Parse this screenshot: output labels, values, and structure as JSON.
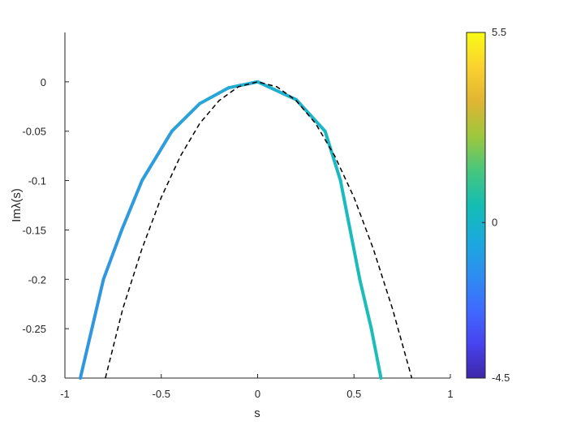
{
  "chart_data": {
    "type": "line",
    "xlabel": "s",
    "ylabel": "Imλ(s)",
    "xlim": [
      -1,
      1
    ],
    "ylim": [
      -0.3,
      0.05
    ],
    "xticks": [
      -1,
      -0.5,
      0,
      0.5,
      1
    ],
    "yticks": [
      -0.3,
      -0.25,
      -0.2,
      -0.15,
      -0.1,
      -0.05,
      0
    ],
    "series": [
      {
        "style": "solid",
        "width": 4,
        "x": [
          -0.92,
          -0.8,
          -0.705,
          -0.6,
          -0.445,
          -0.3,
          -0.15,
          0,
          0.2,
          0.35,
          0.43,
          0.48,
          0.53,
          0.59,
          0.64
        ],
        "values": [
          -0.3,
          -0.2,
          -0.15,
          -0.1,
          -0.05,
          -0.022,
          -0.006,
          0,
          -0.018,
          -0.05,
          -0.1,
          -0.15,
          -0.2,
          -0.25,
          -0.3
        ],
        "colors": [
          "#3196e0",
          "#3198df",
          "#309ade",
          "#2e9ddc",
          "#2ba1da",
          "#28a6d6",
          "#24abd2",
          "#20b0cd",
          "#1db5c6",
          "#1bb8c1",
          "#1bbabe",
          "#1cbbbb",
          "#1dbcb9",
          "#1ebdb7",
          "#1fbeb5"
        ]
      },
      {
        "style": "dashed",
        "width": 1.5,
        "color": "#000000",
        "x": [
          -0.79,
          -0.7,
          -0.6,
          -0.5,
          -0.4,
          -0.3,
          -0.2,
          -0.1,
          0,
          0.1,
          0.2,
          0.3,
          0.4,
          0.5,
          0.6,
          0.7,
          0.8
        ],
        "values": [
          -0.3,
          -0.23,
          -0.169,
          -0.117,
          -0.075,
          -0.042,
          -0.019,
          -0.005,
          0,
          -0.005,
          -0.019,
          -0.042,
          -0.075,
          -0.117,
          -0.169,
          -0.23,
          -0.3
        ]
      }
    ],
    "colorbar": {
      "lim": [
        -4.5,
        5.5
      ],
      "ticks": [
        -4.5,
        0,
        5.5
      ],
      "colormap": [
        "#3e26a8",
        "#4743f0",
        "#3f6bfe",
        "#2d8ef0",
        "#1aaadc",
        "#14bdb3",
        "#47c67e",
        "#9dc73d",
        "#e0b532",
        "#fbd130",
        "#f9fb15"
      ]
    }
  }
}
